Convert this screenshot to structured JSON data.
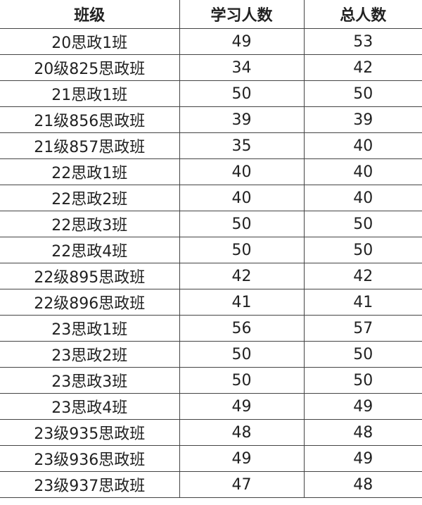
{
  "table": {
    "headers": [
      "班级",
      "学习人数",
      "总人数"
    ],
    "rows": [
      [
        "20思政1班",
        "49",
        "53"
      ],
      [
        "20级825思政班",
        "34",
        "42"
      ],
      [
        "21思政1班",
        "50",
        "50"
      ],
      [
        "21级856思政班",
        "39",
        "39"
      ],
      [
        "21级857思政班",
        "35",
        "40"
      ],
      [
        "22思政1班",
        "40",
        "40"
      ],
      [
        "22思政2班",
        "40",
        "40"
      ],
      [
        "22思政3班",
        "50",
        "50"
      ],
      [
        "22思政4班",
        "50",
        "50"
      ],
      [
        "22级895思政班",
        "42",
        "42"
      ],
      [
        "22级896思政班",
        "41",
        "41"
      ],
      [
        "23思政1班",
        "56",
        "57"
      ],
      [
        "23思政2班",
        "50",
        "50"
      ],
      [
        "23思政3班",
        "50",
        "50"
      ],
      [
        "23思政4班",
        "49",
        "49"
      ],
      [
        "23级935思政班",
        "48",
        "48"
      ],
      [
        "23级936思政班",
        "49",
        "49"
      ],
      [
        "23级937思政班",
        "47",
        "48"
      ]
    ]
  }
}
